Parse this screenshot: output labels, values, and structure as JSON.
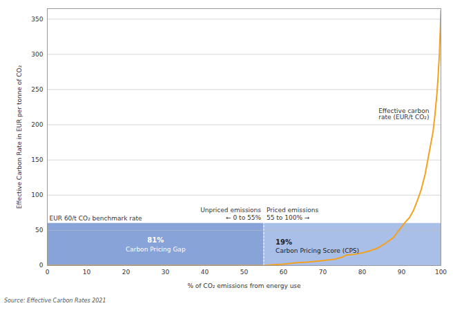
{
  "chart_data": {
    "type": "line",
    "x_label": "% of CO₂ emissions from energy use",
    "y_label": "Effective Carbon Rate in EUR per tonne of CO₂",
    "source": "Source: Effective Carbon Rates 2021",
    "x": [
      0,
      55,
      57,
      60,
      63,
      66,
      70,
      73,
      75,
      76,
      78,
      80,
      82,
      84,
      86,
      88,
      89,
      90,
      91,
      92,
      93,
      94,
      95,
      96,
      97,
      97.5,
      98,
      98.5,
      99,
      99.3,
      99.6,
      99.8,
      100
    ],
    "series": [
      {
        "name": "Effective carbon rate (EUR/t CO₂)",
        "color": "#f4a11d",
        "values": [
          0,
          0,
          1,
          2,
          4,
          5,
          7,
          9,
          12,
          15,
          16,
          18,
          21,
          25,
          32,
          40,
          48,
          55,
          62,
          68,
          78,
          92,
          108,
          130,
          160,
          175,
          190,
          215,
          245,
          270,
          300,
          330,
          362
        ]
      }
    ],
    "benchmark": 60,
    "benchmark_label": "EUR 60/t CO₂ benchmark rate",
    "split": 55,
    "regions": [
      {
        "heading": "Unpriced emissions",
        "range_label": "← 0 to 55%",
        "share_label": "81%",
        "name": "Carbon Pricing Gap",
        "color": "#87a3d8"
      },
      {
        "heading": "Priced emissions",
        "range_label": "55 to 100% →",
        "share_label": "19%",
        "name": "Carbon Pricing Score (CPS)",
        "color": "#a9bfe7"
      }
    ],
    "xlim": [
      0,
      100
    ],
    "ylim": [
      0,
      365
    ],
    "xticks": [
      0,
      10,
      20,
      30,
      40,
      50,
      60,
      70,
      80,
      90,
      100
    ],
    "yticks": [
      0,
      50,
      100,
      150,
      200,
      250,
      300,
      350
    ],
    "grid": true
  }
}
